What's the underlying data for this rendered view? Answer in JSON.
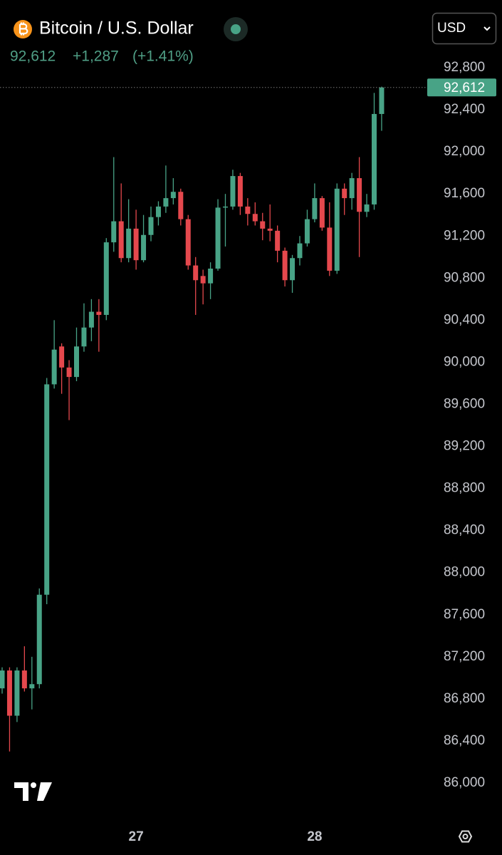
{
  "header": {
    "title": "Bitcoin / U.S. Dollar",
    "price": "92,612",
    "change": "+1,287",
    "change_pct": "(+1.41%)",
    "currency": "USD"
  },
  "chart_data": {
    "type": "candlestick",
    "up_color": "#48a386",
    "down_color": "#e5484d",
    "categories": [
      null,
      null,
      null,
      null,
      null,
      null,
      null,
      null,
      null,
      null,
      null,
      null,
      null,
      null,
      null,
      null,
      null,
      null,
      "27",
      null,
      null,
      null,
      null,
      null,
      null,
      null,
      null,
      null,
      null,
      null,
      null,
      null,
      null,
      null,
      null,
      null,
      null,
      null,
      null,
      null,
      null,
      null,
      "28",
      null,
      null,
      null,
      null,
      null,
      null,
      null,
      null,
      null
    ],
    "open": [
      86900,
      87070,
      86640,
      87070,
      86900,
      86940,
      87790,
      89790,
      90150,
      89950,
      89860,
      90150,
      90330,
      90480,
      90450,
      91140,
      91340,
      90990,
      91270,
      90970,
      91210,
      91380,
      91480,
      91560,
      91620,
      91360,
      90920,
      90820,
      90750,
      90890,
      91470,
      91480,
      91770,
      91480,
      91410,
      91340,
      91270,
      91250,
      91060,
      90780,
      90990,
      91130,
      91360,
      91560,
      91280,
      90870,
      91650,
      91560,
      91750,
      91430,
      91500,
      92360
    ],
    "high": [
      87100,
      87100,
      87100,
      87300,
      87200,
      87850,
      89850,
      90400,
      90180,
      90020,
      90330,
      90560,
      90600,
      90600,
      91180,
      91950,
      91700,
      91550,
      91450,
      91400,
      91480,
      91530,
      91870,
      91750,
      91650,
      91400,
      91000,
      90880,
      90950,
      91550,
      91600,
      91830,
      91800,
      91560,
      91520,
      91420,
      91500,
      91300,
      91090,
      91020,
      91200,
      91450,
      91700,
      91580,
      91520,
      91700,
      91700,
      91800,
      91950,
      91600,
      92560,
      92620
    ],
    "low": [
      86850,
      86300,
      86580,
      86870,
      86700,
      86900,
      87700,
      89750,
      89700,
      89450,
      89820,
      90100,
      90200,
      90100,
      90400,
      91050,
      90950,
      90950,
      90880,
      90950,
      91150,
      91300,
      91420,
      91500,
      91300,
      90880,
      90450,
      90550,
      90600,
      90870,
      91100,
      91450,
      91400,
      91300,
      91300,
      91160,
      91150,
      90950,
      90720,
      90660,
      90920,
      91100,
      91330,
      91250,
      90820,
      90840,
      91400,
      91450,
      91000,
      91380,
      91450,
      92200
    ],
    "close": [
      87070,
      86640,
      87070,
      86900,
      86940,
      87790,
      89790,
      90120,
      89950,
      89860,
      90150,
      90330,
      90480,
      90450,
      91140,
      91340,
      90990,
      91270,
      90970,
      91210,
      91380,
      91480,
      91560,
      91620,
      91360,
      90920,
      90780,
      90750,
      90890,
      91470,
      91480,
      91770,
      91480,
      91410,
      91340,
      91270,
      91250,
      91060,
      90780,
      90990,
      91130,
      91360,
      91560,
      91280,
      90870,
      91650,
      91560,
      91750,
      91430,
      91500,
      92360,
      92612
    ],
    "ylim": [
      86000,
      92800
    ],
    "yticks": [
      {
        "value": 86000,
        "label": "86,000"
      },
      {
        "value": 86400,
        "label": "86,400"
      },
      {
        "value": 86800,
        "label": "86,800"
      },
      {
        "value": 87200,
        "label": "87,200"
      },
      {
        "value": 87600,
        "label": "87,600"
      },
      {
        "value": 88000,
        "label": "88,000"
      },
      {
        "value": 88400,
        "label": "88,400"
      },
      {
        "value": 88800,
        "label": "88,800"
      },
      {
        "value": 89200,
        "label": "89,200"
      },
      {
        "value": 89600,
        "label": "89,600"
      },
      {
        "value": 90000,
        "label": "90,000"
      },
      {
        "value": 90400,
        "label": "90,400"
      },
      {
        "value": 90800,
        "label": "90,800"
      },
      {
        "value": 91200,
        "label": "91,200"
      },
      {
        "value": 91600,
        "label": "91,600"
      },
      {
        "value": 92000,
        "label": "92,000"
      },
      {
        "value": 92400,
        "label": "92,400"
      },
      {
        "value": 92800,
        "label": "92,800"
      }
    ],
    "price_line": {
      "value": 92612,
      "label": "92,612"
    },
    "grid": false
  }
}
